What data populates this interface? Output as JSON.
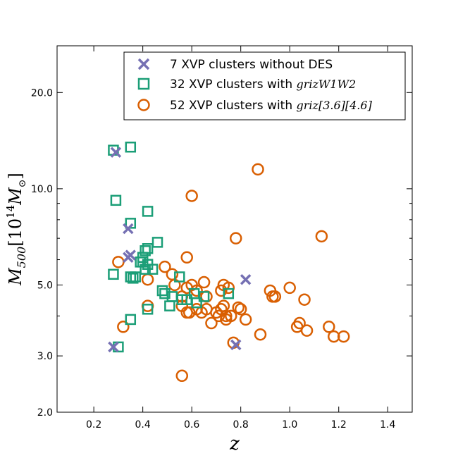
{
  "chart_data": {
    "type": "scatter",
    "xlabel": "z",
    "ylabel_main": "M",
    "ylabel_sub": "500",
    "ylabel_unit_prefix": "[10",
    "ylabel_unit_exp": "14",
    "ylabel_unit_mass": "M",
    "ylabel_unit_sun": "⊙",
    "ylabel_unit_suffix": "]",
    "yscale": "log",
    "xlim": [
      0.05,
      1.5
    ],
    "ylim": [
      2.0,
      28.0
    ],
    "xticks": [
      0.2,
      0.4,
      0.6,
      0.8,
      1.0,
      1.2,
      1.4
    ],
    "xtick_labels": [
      "0.2",
      "0.4",
      "0.6",
      "0.8",
      "1.0",
      "1.2",
      "1.4"
    ],
    "yticks": [
      2.0,
      3.0,
      5.0,
      10.0,
      20.0
    ],
    "ytick_labels": [
      "2.0",
      "3.0",
      "5.0",
      "10.0",
      "20.0"
    ],
    "yminor_ticks": [
      4.0,
      6.0,
      7.0,
      8.0,
      9.0
    ],
    "legend_position": "top-right",
    "series": [
      {
        "name": "7 XVP clusters without DES",
        "legend_text": "7 XVP clusters without DES",
        "legend_math": "",
        "marker": "x",
        "color": "#7570b3",
        "x": [
          0.29,
          0.34,
          0.35,
          0.34,
          0.28,
          0.78,
          0.82
        ],
        "y": [
          13.0,
          7.5,
          6.2,
          6.1,
          3.2,
          3.25,
          5.2
        ]
      },
      {
        "name": "32 XVP clusters with grizW1W2",
        "legend_text": "32 XVP clusters with ",
        "legend_math": "grizW1W2",
        "marker": "square",
        "color": "#1b9e77",
        "x": [
          0.28,
          0.35,
          0.29,
          0.35,
          0.42,
          0.46,
          0.42,
          0.41,
          0.4,
          0.39,
          0.4,
          0.42,
          0.41,
          0.44,
          0.37,
          0.28,
          0.35,
          0.36,
          0.48,
          0.49,
          0.51,
          0.55,
          0.52,
          0.56,
          0.58,
          0.62,
          0.65,
          0.61,
          0.75,
          0.42,
          0.35,
          0.3
        ],
        "y": [
          13.2,
          13.5,
          9.2,
          7.8,
          8.5,
          6.8,
          6.5,
          6.4,
          6.1,
          5.9,
          5.9,
          5.8,
          5.6,
          5.6,
          5.3,
          5.4,
          5.3,
          5.25,
          4.8,
          4.7,
          4.3,
          5.3,
          4.6,
          4.5,
          4.5,
          4.4,
          4.6,
          4.7,
          4.7,
          4.2,
          3.9,
          3.2
        ]
      },
      {
        "name": "52 XVP clusters with griz[3.6][4.6]",
        "legend_text": "52 XVP clusters with ",
        "legend_math": "griz[3.6][4.6]",
        "marker": "circle",
        "color": "#d95f02",
        "x": [
          0.87,
          0.6,
          0.78,
          1.13,
          0.3,
          0.58,
          0.49,
          0.42,
          0.52,
          0.53,
          0.56,
          0.58,
          0.6,
          0.62,
          0.65,
          0.66,
          0.73,
          0.75,
          0.72,
          0.56,
          0.58,
          0.59,
          0.62,
          0.64,
          0.66,
          0.68,
          0.7,
          0.71,
          0.72,
          0.73,
          0.74,
          0.74,
          0.76,
          0.79,
          0.8,
          0.82,
          0.92,
          0.93,
          0.94,
          1.0,
          1.03,
          1.04,
          1.06,
          1.07,
          1.16,
          1.18,
          1.22,
          0.88,
          0.77,
          0.32,
          0.42,
          0.56
        ],
        "y": [
          11.5,
          9.5,
          7.0,
          7.1,
          5.9,
          6.1,
          5.7,
          5.2,
          5.4,
          5.0,
          4.6,
          4.9,
          5.0,
          4.8,
          5.1,
          4.6,
          5.0,
          4.9,
          4.8,
          4.3,
          4.1,
          4.1,
          4.2,
          4.1,
          4.2,
          3.8,
          4.1,
          4.0,
          4.2,
          4.3,
          4.0,
          3.9,
          4.0,
          4.25,
          4.2,
          3.9,
          4.8,
          4.6,
          4.6,
          4.9,
          3.7,
          3.8,
          4.5,
          3.6,
          3.7,
          3.45,
          3.45,
          3.5,
          3.3,
          3.7,
          4.3,
          2.6
        ]
      }
    ]
  }
}
